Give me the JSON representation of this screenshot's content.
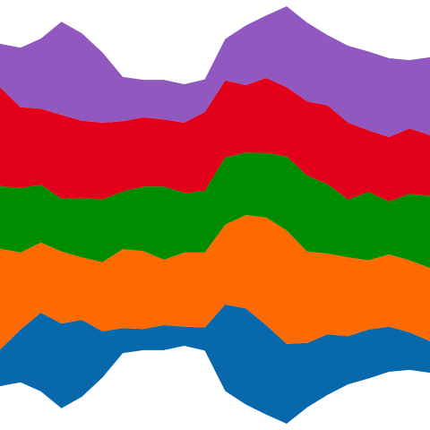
{
  "chart_data": {
    "type": "area",
    "stacked": true,
    "offset": "streamgraph",
    "title": "",
    "xlabel": "",
    "ylabel": "",
    "axes_visible": false,
    "grid": false,
    "legend": "none",
    "x": [
      0,
      1,
      2,
      3,
      4,
      5,
      6,
      7,
      8,
      9,
      10,
      11,
      12,
      13,
      14,
      15,
      16,
      17,
      18,
      19,
      20,
      21
    ],
    "series": [
      {
        "color": "#0868ac",
        "values": [
          38,
          55,
          82,
          88,
          80,
          48,
          26,
          22,
          26,
          20,
          24,
          90,
          100,
          93,
          83,
          67,
          63,
          50,
          51,
          47,
          39,
          33
        ]
      },
      {
        "color": "#fd6a02",
        "values": [
          105,
          80,
          73,
          75,
          65,
          72,
          82,
          81,
          68,
          77,
          78,
          83,
          97,
          112,
          118,
          95,
          84,
          82,
          72,
          75,
          75,
          76
        ]
      },
      {
        "color": "#008c00",
        "values": [
          65,
          67,
          60,
          55,
          62,
          65,
          60,
          67,
          76,
          62,
          64,
          70,
          65,
          67,
          77,
          79,
          72,
          60,
          71,
          55,
          69,
          75
        ]
      },
      {
        "color": "#e3001a",
        "values": [
          103,
          84,
          79,
          87,
          80,
          80,
          73,
          72,
          70,
          73,
          82,
          80,
          70,
          78,
          72,
          77,
          82,
          80,
          64,
          67,
          68,
          63
        ]
      },
      {
        "color": "#9159bf",
        "values": [
          45,
          62,
          73,
          97,
          91,
          73,
          46,
          39,
          41,
          40,
          34,
          43,
          62,
          65,
          84,
          82,
          73,
          80,
          82,
          82,
          71,
          81
        ]
      }
    ]
  }
}
